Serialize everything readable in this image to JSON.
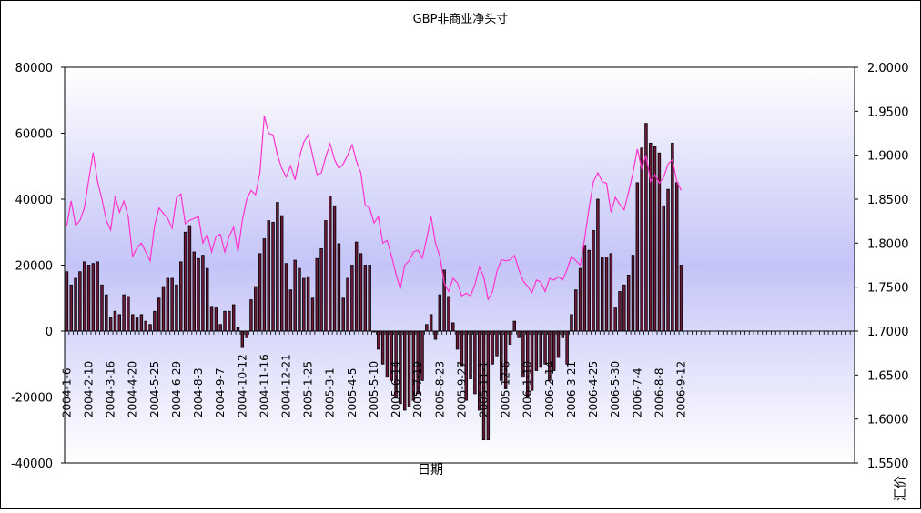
{
  "chart_data": {
    "type": "bar+line",
    "title": "GBP非商业净头寸",
    "xlabel": "日期",
    "ylabel_right": "汇价",
    "left_axis": {
      "ylim": [
        -40000,
        80000
      ],
      "ticks": [
        "80000",
        "60000",
        "40000",
        "20000",
        "0",
        "-20000",
        "-40000"
      ]
    },
    "right_axis": {
      "ylim": [
        1.55,
        2.0
      ],
      "ticks": [
        "2.0000",
        "1.9500",
        "1.9000",
        "1.8500",
        "1.8000",
        "1.7500",
        "1.7000",
        "1.6500",
        "1.6000",
        "1.5500"
      ]
    },
    "x_tick_labels": [
      "2004-1-6",
      "2004-2-10",
      "2004-3-16",
      "2004-4-20",
      "2004-5-25",
      "2004-6-29",
      "2004-8-3",
      "2004-9-7",
      "2004-10-12",
      "2004-11-16",
      "2004-12-21",
      "2005-1-25",
      "2005-3-1",
      "2005-4-5",
      "2005-5-10",
      "2005-6-14",
      "2005-7-19",
      "2005-8-23",
      "2005-9-27",
      "2005-11-1",
      "2005-12-6",
      "2006-1-10",
      "2006-2-14",
      "2006-3-21",
      "2006-4-25",
      "2006-5-30",
      "2006-7-4",
      "2006-8-8",
      "2006-9-12"
    ],
    "total_slots": 180,
    "series": [
      {
        "kind": "bar",
        "axis": "left",
        "values": [
          18000,
          14000,
          16000,
          18000,
          21000,
          20000,
          20500,
          21000,
          14000,
          11000,
          4000,
          6000,
          5000,
          11000,
          10500,
          5000,
          4000,
          5000,
          3000,
          2000,
          6000,
          10000,
          13500,
          16000,
          16000,
          14000,
          21000,
          30000,
          32000,
          24000,
          22000,
          23000,
          19000,
          7500,
          7000,
          2000,
          6000,
          6000,
          8000,
          1000,
          -5000,
          -2000,
          9500,
          13500,
          23500,
          28000,
          33500,
          33000,
          39000,
          35000,
          20500,
          12500,
          21500,
          19000,
          16000,
          16500,
          10000,
          22000,
          25000,
          33500,
          41000,
          38000,
          26500,
          10000,
          16000,
          20000,
          27000,
          23500,
          20000,
          20000,
          0,
          -5500,
          -10000,
          -14000,
          -15000,
          -20000,
          -22000,
          -24000,
          -23000,
          -21000,
          -19000,
          -15000,
          2000,
          5000,
          -2500,
          11000,
          18500,
          10500,
          2500,
          -5500,
          -10500,
          -21000,
          -14500,
          -19000,
          -24000,
          -33000,
          -33000,
          -10000,
          -7500,
          -15000,
          -17500,
          -4000,
          3000,
          -2000,
          -14000,
          -20000,
          -18000,
          -12000,
          -11000,
          -10000,
          -15000,
          -12000,
          -8000,
          -2000,
          -10000,
          5000,
          12500,
          19000,
          26000,
          24500,
          30500,
          40000,
          22500,
          22500,
          23500,
          7000,
          12000,
          14000,
          17000,
          23000,
          45000,
          55500,
          63000,
          57000,
          56000,
          54000,
          38000,
          43000,
          57000,
          45000,
          20000
        ]
      },
      {
        "kind": "line",
        "axis": "right",
        "color": "#ff33cc",
        "values": [
          1.82,
          1.848,
          1.82,
          1.826,
          1.84,
          1.872,
          1.903,
          1.87,
          1.85,
          1.826,
          1.815,
          1.853,
          1.835,
          1.848,
          1.83,
          1.785,
          1.795,
          1.8,
          1.79,
          1.78,
          1.82,
          1.84,
          1.834,
          1.828,
          1.817,
          1.852,
          1.856,
          1.822,
          1.826,
          1.828,
          1.83,
          1.8,
          1.81,
          1.79,
          1.808,
          1.81,
          1.79,
          1.808,
          1.818,
          1.79,
          1.826,
          1.85,
          1.86,
          1.855,
          1.88,
          1.945,
          1.925,
          1.923,
          1.9,
          1.885,
          1.875,
          1.888,
          1.872,
          1.898,
          1.915,
          1.923,
          1.9,
          1.878,
          1.88,
          1.898,
          1.913,
          1.895,
          1.885,
          1.89,
          1.9,
          1.912,
          1.893,
          1.88,
          1.843,
          1.84,
          1.823,
          1.83,
          1.8,
          1.803,
          1.785,
          1.765,
          1.748,
          1.775,
          1.78,
          1.79,
          1.792,
          1.783,
          1.805,
          1.83,
          1.8,
          1.785,
          1.755,
          1.745,
          1.76,
          1.755,
          1.74,
          1.743,
          1.74,
          1.753,
          1.773,
          1.762,
          1.736,
          1.745,
          1.768,
          1.781,
          1.78,
          1.781,
          1.786,
          1.77,
          1.757,
          1.751,
          1.744,
          1.758,
          1.756,
          1.745,
          1.76,
          1.758,
          1.762,
          1.758,
          1.77,
          1.785,
          1.78,
          1.775,
          1.805,
          1.84,
          1.87,
          1.88,
          1.87,
          1.868,
          1.835,
          1.852,
          1.844,
          1.838,
          1.858,
          1.88,
          1.907,
          1.885,
          1.9,
          1.87,
          1.878,
          1.868,
          1.875,
          1.89,
          1.895,
          1.87,
          1.86
        ]
      }
    ],
    "grid": false
  }
}
